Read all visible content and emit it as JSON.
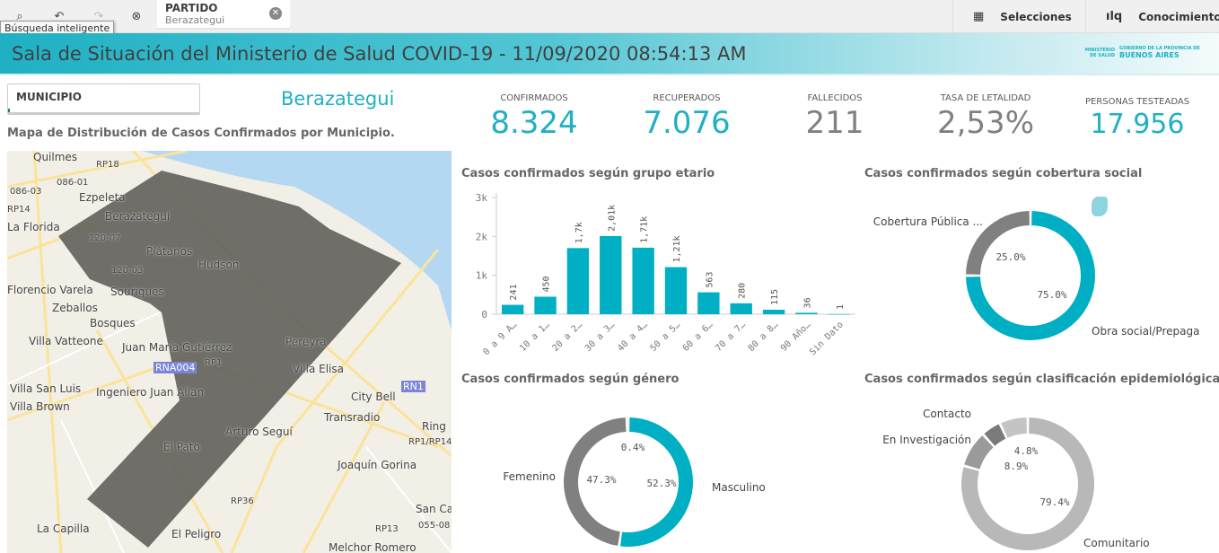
{
  "toolbar": {
    "smart_search_tooltip": "Búsqueda inteligente",
    "selection": {
      "field": "PARTIDO",
      "value": "Berazategui"
    },
    "selections_label": "Selecciones",
    "insights_label": "Conocimientos"
  },
  "banner": {
    "title": "Sala de Situación del Ministerio de Salud COVID-19 - 11/09/2020 08:54:13 AM",
    "logo": {
      "ministry": "MINISTERIO DE SALUD",
      "gov": "GOBIERNO DE LA PROVINCIA DE",
      "province": "BUENOS AIRES"
    }
  },
  "filter": {
    "label": "MUNICIPIO",
    "selected": "Berazategui"
  },
  "map": {
    "title": "Mapa de Distribución de Casos Confirmados por Municipio.",
    "labels": [
      "Quilmes",
      "RP18",
      "086-01",
      "086-03",
      "Ezpeleta",
      "RP14",
      "Berazategui",
      "La Florida",
      "120-07",
      "Plátanos",
      "Hudson",
      "120-03",
      "Florencio Varela",
      "Sourigues",
      "Zeballos",
      "Bosques",
      "Villa Vatteone",
      "Juan María Gutiérrez",
      "Pereyra",
      "RP1",
      "Villa Elisa",
      "Villa San Luis",
      "Ingeniero Juan Allan",
      "City Bell",
      "Villa Brown",
      "Transradio",
      "Ring",
      "Arturo Seguí",
      "RP1/RP14",
      "El Pato",
      "Joaquín Gorina",
      "RP36",
      "San Car",
      "La Capilla",
      "El Peligro",
      "RP13",
      "055-08",
      "Melchor Romero"
    ],
    "shields": [
      "RNA004",
      "RN1"
    ]
  },
  "kpis": [
    {
      "label": "CONFIRMADOS",
      "value": "8.324",
      "color": "#1fb0c4"
    },
    {
      "label": "RECUPERADOS",
      "value": "7.076",
      "color": "#1fb0c4"
    },
    {
      "label": "FALLECIDOS",
      "value": "211",
      "color": "#808080"
    },
    {
      "label": "TASA DE LETALIDAD",
      "value": "2,53%",
      "color": "#808080"
    },
    {
      "label": "PERSONAS TESTEADAS",
      "value": "17.956",
      "color": "#1fb0c4"
    }
  ],
  "chart_data": [
    {
      "type": "bar",
      "title": "Casos confirmados según grupo etario",
      "categories": [
        "0 a 9 A…",
        "10 a 1…",
        "20 a 2…",
        "30 a 3…",
        "40 a 4…",
        "50 a 5…",
        "60 a 6…",
        "70 a 7…",
        "80 a 8…",
        "90 Año…",
        "Sin Dato"
      ],
      "values": [
        241,
        450,
        1700,
        2010,
        1710,
        1210,
        563,
        280,
        115,
        36,
        1
      ],
      "data_labels": [
        "241",
        "450",
        "1,7k",
        "2,01k",
        "1,71k",
        "1,21k",
        "563",
        "280",
        "115",
        "36",
        "1"
      ],
      "yticks": [
        "0",
        "1k",
        "2k",
        "3k"
      ],
      "ylim": [
        0,
        3000
      ],
      "color": "#00afc4"
    },
    {
      "type": "pie",
      "title": "Casos confirmados según cobertura social",
      "donut": true,
      "slices": [
        {
          "name": "Obra social/Prepaga",
          "value": 75.0,
          "label": "75.0%",
          "color": "#00afc4"
        },
        {
          "name": "Cobertura Pública ...",
          "value": 25.0,
          "label": "25.0%",
          "color": "#808080"
        }
      ]
    },
    {
      "type": "pie",
      "title": "Casos confirmados según género",
      "donut": true,
      "slices": [
        {
          "name": "Masculino",
          "value": 52.3,
          "label": "52.3%",
          "color": "#00afc4"
        },
        {
          "name": "Femenino",
          "value": 47.3,
          "label": "47.3%",
          "color": "#808080"
        },
        {
          "name": "",
          "value": 0.4,
          "label": "0.4%",
          "color": "#b0b0b0"
        }
      ]
    },
    {
      "type": "pie",
      "title": "Casos confirmados según clasificación epidemiológica",
      "donut": true,
      "slices": [
        {
          "name": "Comunitario",
          "value": 79.4,
          "label": "79.4%",
          "color": "#b8b8b8"
        },
        {
          "name": "En Investigación",
          "value": 8.9,
          "label": "8.9%",
          "color": "#9a9a9a"
        },
        {
          "name": "Contacto",
          "value": 4.8,
          "label": "4.8%",
          "color": "#7a7a7a"
        },
        {
          "name": "",
          "value": 6.9,
          "label": "",
          "color": "#c4c4c4"
        }
      ]
    }
  ]
}
